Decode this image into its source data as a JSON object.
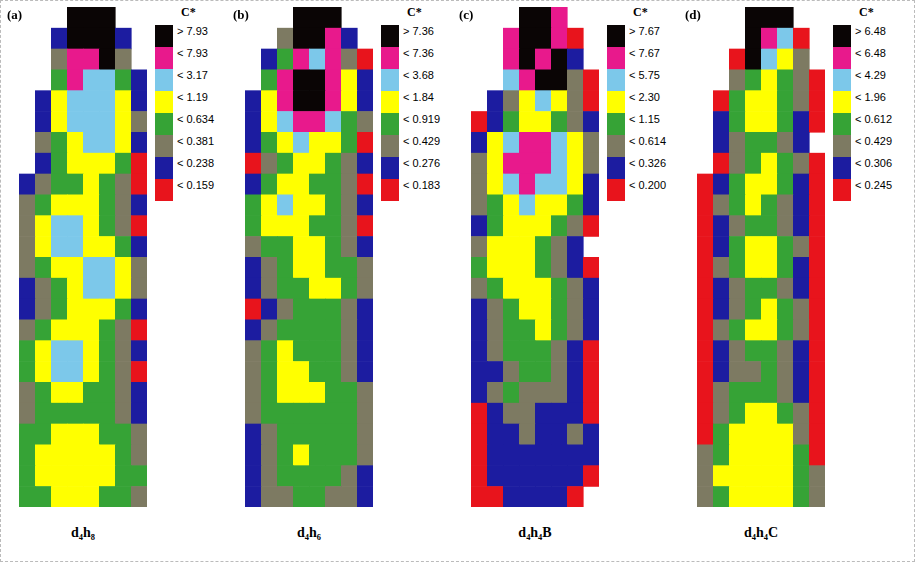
{
  "chart_data": [
    {
      "type": "heatmap",
      "panel": "(a)",
      "caption": "d₄h₈",
      "tick_labels": false,
      "colorbar": {
        "title": "C*",
        "ticks": [
          {
            "value": 7.93,
            "label": "> 7.93"
          },
          {
            "value": 7.93,
            "label": "< 7.93"
          },
          {
            "value": 3.17,
            "label": "< 3.17"
          },
          {
            "value": 1.19,
            "label": "< 1.19"
          },
          {
            "value": 0.634,
            "label": "< 0.634"
          },
          {
            "value": 0.381,
            "label": "< 0.381"
          },
          {
            "value": 0.238,
            "label": "< 0.238"
          },
          {
            "value": 0.159,
            "label": "< 0.159"
          }
        ],
        "colors": [
          "#0a0505",
          "#e8198c",
          "#7cc8ea",
          "#ffff00",
          "#36a336",
          "#7d7a62",
          "#1c1ca0",
          "#e8141c"
        ]
      },
      "cells": [
        [
          null,
          null,
          null,
          9.5,
          9.5,
          9.5,
          null,
          null
        ],
        [
          null,
          null,
          0.2,
          9.5,
          9.5,
          9.5,
          0.2,
          null
        ],
        [
          null,
          null,
          0.3,
          5.2,
          5.2,
          9.5,
          0.3,
          null
        ],
        [
          null,
          null,
          0.5,
          5.2,
          2.1,
          2.1,
          0.5,
          0.2
        ],
        [
          null,
          0.2,
          0.85,
          2.1,
          2.1,
          2.1,
          0.85,
          0.2
        ],
        [
          null,
          0.2,
          0.85,
          2.1,
          2.1,
          2.1,
          0.85,
          0.3
        ],
        [
          null,
          0.3,
          0.5,
          0.85,
          2.1,
          2.1,
          0.85,
          0.2
        ],
        [
          null,
          0.2,
          0.5,
          0.85,
          0.85,
          0.85,
          0.5,
          0.12
        ],
        [
          0.2,
          0.3,
          0.5,
          0.5,
          0.85,
          0.5,
          0.3,
          0.12
        ],
        [
          0.3,
          0.5,
          0.85,
          0.85,
          0.85,
          0.5,
          0.3,
          0.2
        ],
        [
          0.3,
          0.85,
          2.1,
          2.1,
          0.85,
          0.5,
          0.3,
          0.12
        ],
        [
          0.3,
          0.85,
          2.1,
          2.1,
          0.85,
          0.85,
          0.5,
          0.2
        ],
        [
          0.3,
          0.5,
          0.85,
          0.85,
          2.1,
          2.1,
          0.85,
          0.3
        ],
        [
          0.2,
          0.3,
          0.5,
          0.85,
          2.1,
          2.1,
          0.85,
          0.3
        ],
        [
          0.2,
          0.3,
          0.5,
          0.85,
          0.85,
          0.85,
          0.5,
          0.2
        ],
        [
          0.3,
          0.5,
          0.85,
          0.85,
          0.85,
          0.5,
          0.3,
          0.12
        ],
        [
          0.5,
          0.85,
          2.1,
          2.1,
          0.85,
          0.5,
          0.3,
          0.2
        ],
        [
          0.5,
          0.85,
          2.1,
          2.1,
          0.85,
          0.5,
          0.3,
          0.12
        ],
        [
          0.3,
          0.5,
          0.85,
          0.85,
          0.5,
          0.5,
          0.3,
          0.2
        ],
        [
          0.3,
          0.5,
          0.5,
          0.5,
          0.5,
          0.5,
          0.3,
          0.2
        ],
        [
          0.5,
          0.5,
          0.85,
          0.85,
          0.85,
          0.5,
          0.5,
          0.3
        ],
        [
          0.5,
          0.85,
          0.85,
          0.85,
          0.85,
          0.85,
          0.5,
          0.3
        ],
        [
          0.5,
          0.85,
          0.85,
          0.85,
          0.85,
          0.85,
          0.5,
          0.5
        ],
        [
          0.5,
          0.5,
          0.85,
          0.85,
          0.85,
          0.5,
          0.5,
          0.3
        ]
      ]
    },
    {
      "type": "heatmap",
      "panel": "(b)",
      "caption": "d₄h₆",
      "tick_labels": false,
      "colorbar": {
        "title": "C*",
        "ticks": [
          {
            "value": 7.36,
            "label": "> 7.36"
          },
          {
            "value": 7.36,
            "label": "< 7.36"
          },
          {
            "value": 3.68,
            "label": "< 3.68"
          },
          {
            "value": 1.84,
            "label": "< 1.84"
          },
          {
            "value": 0.919,
            "label": "< 0.919"
          },
          {
            "value": 0.429,
            "label": "< 0.429"
          },
          {
            "value": 0.276,
            "label": "< 0.276"
          },
          {
            "value": 0.183,
            "label": "< 0.183"
          }
        ],
        "colors": [
          "#0a0505",
          "#e8198c",
          "#7cc8ea",
          "#ffff00",
          "#36a336",
          "#7d7a62",
          "#1c1ca0",
          "#e8141c"
        ]
      },
      "cells": [
        [
          null,
          null,
          null,
          8.8,
          8.8,
          8.8,
          null,
          null
        ],
        [
          null,
          null,
          0.35,
          8.8,
          8.8,
          5.1,
          0.23,
          null
        ],
        [
          null,
          0.23,
          0.65,
          5.1,
          2.6,
          5.1,
          0.35,
          0.14
        ],
        [
          null,
          0.65,
          5.1,
          8.8,
          8.8,
          5.1,
          1.3,
          0.23
        ],
        [
          0.23,
          1.3,
          5.1,
          8.8,
          8.8,
          5.1,
          1.3,
          0.23
        ],
        [
          0.23,
          1.3,
          2.6,
          5.1,
          5.1,
          2.6,
          0.65,
          0.35
        ],
        [
          0.23,
          0.65,
          1.3,
          2.6,
          1.3,
          1.3,
          0.65,
          0.14
        ],
        [
          0.14,
          0.35,
          0.65,
          1.3,
          1.3,
          0.65,
          0.35,
          0.23
        ],
        [
          0.23,
          0.65,
          1.3,
          1.3,
          0.65,
          0.65,
          0.35,
          0.14
        ],
        [
          0.65,
          1.3,
          2.6,
          1.3,
          1.3,
          0.65,
          0.35,
          0.23
        ],
        [
          0.65,
          1.3,
          1.3,
          1.3,
          0.65,
          0.65,
          0.35,
          0.14
        ],
        [
          0.35,
          0.65,
          0.65,
          1.3,
          1.3,
          0.65,
          0.35,
          0.23
        ],
        [
          0.23,
          0.35,
          0.65,
          1.3,
          1.3,
          0.65,
          0.65,
          0.35
        ],
        [
          0.23,
          0.35,
          0.65,
          0.65,
          1.3,
          1.3,
          0.65,
          0.35
        ],
        [
          0.14,
          0.23,
          0.35,
          0.65,
          0.65,
          0.65,
          0.35,
          0.23
        ],
        [
          0.23,
          0.35,
          0.65,
          0.65,
          0.65,
          0.65,
          0.35,
          0.23
        ],
        [
          0.35,
          0.65,
          1.3,
          0.65,
          0.65,
          0.65,
          0.35,
          0.23
        ],
        [
          0.35,
          0.65,
          1.3,
          1.3,
          0.65,
          0.65,
          0.35,
          0.23
        ],
        [
          0.35,
          0.65,
          1.3,
          1.3,
          1.3,
          0.65,
          0.65,
          0.35
        ],
        [
          0.35,
          0.65,
          0.65,
          0.65,
          0.65,
          0.65,
          0.65,
          0.35
        ],
        [
          0.23,
          0.35,
          0.65,
          0.65,
          0.65,
          0.65,
          0.65,
          0.35
        ],
        [
          0.23,
          0.35,
          0.65,
          1.3,
          0.65,
          0.65,
          0.65,
          0.35
        ],
        [
          0.23,
          0.35,
          0.65,
          0.65,
          0.65,
          0.65,
          0.35,
          0.23
        ],
        [
          0.23,
          0.35,
          0.35,
          0.65,
          0.65,
          0.35,
          0.35,
          0.23
        ]
      ]
    },
    {
      "type": "heatmap",
      "panel": "(c)",
      "caption": "d₄h₄B",
      "tick_labels": false,
      "colorbar": {
        "title": "C*",
        "ticks": [
          {
            "value": 7.67,
            "label": "> 7.67"
          },
          {
            "value": 7.67,
            "label": "< 7.67"
          },
          {
            "value": 5.75,
            "label": "< 5.75"
          },
          {
            "value": 2.3,
            "label": "< 2.30"
          },
          {
            "value": 1.15,
            "label": "< 1.15"
          },
          {
            "value": 0.614,
            "label": "< 0.614"
          },
          {
            "value": 0.326,
            "label": "< 0.326"
          },
          {
            "value": 0.2,
            "label": "< 0.200"
          }
        ],
        "colors": [
          "#0a0505",
          "#e8198c",
          "#7cc8ea",
          "#ffff00",
          "#36a336",
          "#7d7a62",
          "#1c1ca0",
          "#e8141c"
        ]
      },
      "cells": [
        [
          null,
          null,
          null,
          9,
          9,
          6.6,
          null,
          null
        ],
        [
          null,
          null,
          6.6,
          9,
          9,
          6.6,
          0.15,
          null
        ],
        [
          null,
          null,
          6.6,
          9,
          6.6,
          9,
          0.26,
          null
        ],
        [
          null,
          null,
          3.9,
          6.6,
          9,
          9,
          0.45,
          0.15
        ],
        [
          null,
          0.26,
          0.45,
          1.7,
          3.9,
          1.7,
          0.45,
          0.15
        ],
        [
          0.15,
          0.26,
          0.85,
          1.7,
          1.7,
          0.85,
          0.45,
          0.26
        ],
        [
          0.26,
          1.7,
          3.9,
          6.6,
          6.6,
          3.9,
          1.7,
          0.45
        ],
        [
          0.45,
          1.7,
          6.6,
          6.6,
          6.6,
          3.9,
          1.7,
          0.45
        ],
        [
          0.45,
          1.7,
          3.9,
          6.6,
          3.9,
          3.9,
          1.7,
          0.26
        ],
        [
          0.45,
          0.85,
          1.7,
          3.9,
          1.7,
          1.7,
          0.85,
          0.26
        ],
        [
          0.26,
          0.85,
          1.7,
          1.7,
          1.7,
          0.85,
          0.45,
          0.15
        ],
        [
          0.45,
          1.7,
          1.7,
          1.7,
          0.85,
          0.45,
          0.26,
          null
        ],
        [
          0.85,
          1.7,
          1.7,
          1.7,
          0.85,
          0.45,
          0.26,
          0.15
        ],
        [
          0.45,
          0.85,
          1.7,
          1.7,
          1.7,
          0.85,
          0.45,
          0.26
        ],
        [
          0.26,
          0.45,
          0.85,
          1.7,
          1.7,
          0.85,
          0.45,
          0.26
        ],
        [
          0.26,
          0.45,
          0.85,
          0.85,
          1.7,
          0.85,
          0.45,
          0.26
        ],
        [
          0.26,
          0.45,
          0.85,
          0.85,
          0.85,
          0.45,
          0.26,
          0.15
        ],
        [
          0.26,
          0.26,
          0.45,
          0.85,
          0.85,
          0.45,
          0.26,
          0.15
        ],
        [
          0.26,
          0.45,
          0.85,
          0.45,
          0.45,
          0.45,
          0.26,
          0.15
        ],
        [
          0.15,
          0.26,
          0.45,
          0.45,
          0.26,
          0.26,
          0.26,
          0.15
        ],
        [
          0.15,
          0.26,
          0.26,
          0.45,
          0.26,
          0.26,
          0.45,
          0.26
        ],
        [
          0.15,
          0.26,
          0.26,
          0.26,
          0.26,
          0.26,
          0.26,
          0.26
        ],
        [
          0.15,
          0.26,
          0.26,
          0.26,
          0.26,
          0.26,
          0.26,
          0.15
        ],
        [
          0.15,
          0.15,
          0.26,
          0.26,
          0.26,
          0.26,
          0.15,
          null
        ]
      ]
    },
    {
      "type": "heatmap",
      "panel": "(d)",
      "caption": "d₄h₄C",
      "tick_labels": false,
      "colorbar": {
        "title": "C*",
        "ticks": [
          {
            "value": 6.48,
            "label": "> 6.48"
          },
          {
            "value": 6.48,
            "label": "< 6.48"
          },
          {
            "value": 4.29,
            "label": "< 4.29"
          },
          {
            "value": 1.96,
            "label": "< 1.96"
          },
          {
            "value": 0.612,
            "label": "< 0.612"
          },
          {
            "value": 0.429,
            "label": "< 0.429"
          },
          {
            "value": 0.306,
            "label": "< 0.306"
          },
          {
            "value": 0.245,
            "label": "< 0.245"
          }
        ],
        "colors": [
          "#0a0505",
          "#e8198c",
          "#7cc8ea",
          "#ffff00",
          "#36a336",
          "#7d7a62",
          "#1c1ca0",
          "#e8141c"
        ]
      },
      "cells": [
        [
          null,
          null,
          null,
          7.6,
          7.6,
          7.6,
          null,
          null
        ],
        [
          null,
          null,
          null,
          7.6,
          5.3,
          3.0,
          0.2,
          null
        ],
        [
          null,
          null,
          0.2,
          7.6,
          3.0,
          1.2,
          0.37,
          null
        ],
        [
          null,
          null,
          0.37,
          0.52,
          1.2,
          0.52,
          0.37,
          0.2
        ],
        [
          null,
          0.2,
          0.52,
          1.2,
          1.2,
          0.52,
          0.37,
          0.2
        ],
        [
          null,
          0.28,
          0.52,
          1.2,
          1.2,
          0.52,
          0.28,
          0.2
        ],
        [
          null,
          0.28,
          0.37,
          0.52,
          0.52,
          0.37,
          0.28,
          null
        ],
        [
          null,
          0.2,
          0.37,
          0.52,
          1.2,
          0.52,
          0.37,
          0.2
        ],
        [
          0.2,
          0.28,
          0.52,
          1.2,
          1.2,
          0.52,
          0.28,
          0.2
        ],
        [
          0.2,
          0.37,
          0.52,
          1.2,
          0.52,
          0.37,
          0.28,
          0.2
        ],
        [
          0.2,
          0.28,
          0.37,
          0.52,
          0.52,
          0.37,
          0.28,
          0.2
        ],
        [
          0.2,
          0.28,
          0.52,
          1.2,
          1.2,
          0.52,
          0.37,
          0.2
        ],
        [
          0.2,
          0.37,
          0.52,
          1.2,
          1.2,
          0.52,
          0.28,
          0.2
        ],
        [
          0.2,
          0.28,
          0.37,
          0.52,
          0.52,
          0.37,
          0.28,
          0.2
        ],
        [
          0.2,
          0.28,
          0.37,
          0.52,
          1.2,
          0.52,
          0.37,
          0.2
        ],
        [
          0.2,
          0.37,
          0.52,
          1.2,
          1.2,
          0.52,
          0.37,
          0.2
        ],
        [
          0.2,
          0.28,
          0.37,
          0.52,
          0.52,
          0.37,
          0.28,
          0.2
        ],
        [
          0.2,
          0.28,
          0.37,
          0.37,
          0.52,
          0.37,
          0.28,
          0.2
        ],
        [
          0.2,
          0.37,
          0.52,
          0.52,
          0.52,
          0.37,
          0.28,
          0.2
        ],
        [
          0.2,
          0.37,
          0.52,
          1.2,
          1.2,
          0.52,
          0.37,
          0.2
        ],
        [
          0.2,
          0.52,
          1.2,
          1.2,
          1.2,
          1.2,
          0.37,
          0.2
        ],
        [
          0.37,
          0.52,
          1.2,
          1.2,
          1.2,
          1.2,
          0.52,
          0.2
        ],
        [
          0.37,
          1.2,
          1.2,
          1.2,
          1.2,
          1.2,
          0.52,
          0.37
        ],
        [
          0.37,
          0.52,
          1.2,
          1.2,
          1.2,
          1.2,
          0.52,
          0.37
        ]
      ]
    }
  ]
}
